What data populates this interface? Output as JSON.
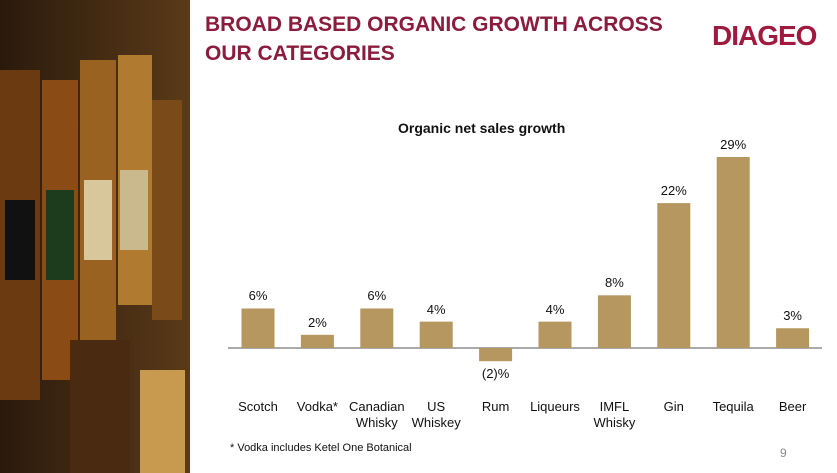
{
  "header": {
    "title": "BROAD BASED ORGANIC GROWTH ACROSS OUR CATEGORIES",
    "logo": "DIAGEO"
  },
  "chart_data": {
    "type": "bar",
    "title": "Organic net sales growth",
    "categories": [
      "Scotch",
      "Vodka*",
      "Canadian Whisky",
      "US Whiskey",
      "Rum",
      "Liqueurs",
      "IMFL Whisky",
      "Gin",
      "Tequila",
      "Beer"
    ],
    "values": [
      6,
      2,
      6,
      4,
      -2,
      4,
      8,
      22,
      29,
      3
    ],
    "value_labels": [
      "6%",
      "2%",
      "6%",
      "4%",
      "(2)%",
      "4%",
      "8%",
      "22%",
      "29%",
      "3%"
    ],
    "color": "#b5975f"
  },
  "footnote": "* Vodka includes Ketel One Botanical",
  "page_number": "9"
}
